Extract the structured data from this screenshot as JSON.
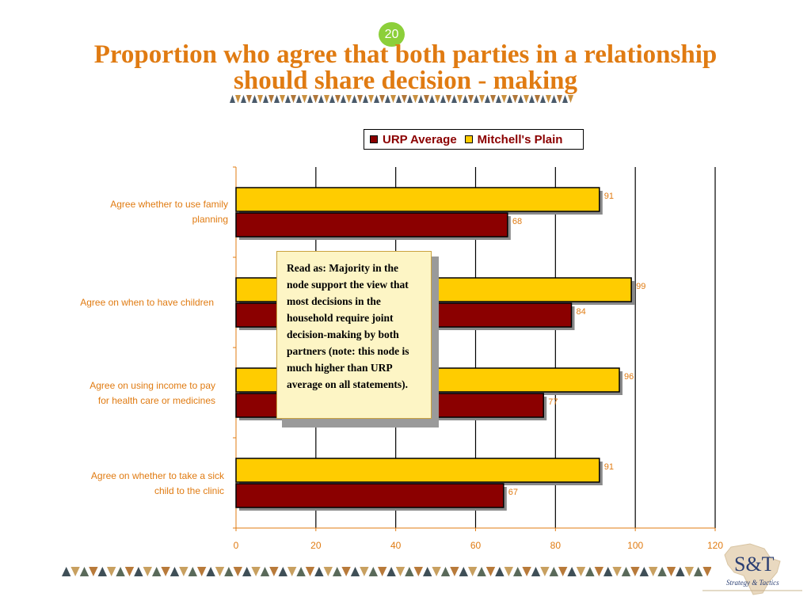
{
  "slide": {
    "number": "20"
  },
  "title": "Proportion who agree that both parties in a relationship should share decision - making",
  "chart_data": {
    "type": "bar",
    "orientation": "horizontal",
    "categories": [
      "Agree whether to use family\nplanning",
      "Agree on when to have children",
      "Agree on using income to pay\nfor health care or medicines",
      "Agree on whether to take a sick\nchild to the clinic"
    ],
    "series": [
      {
        "name": "URP Average",
        "color": "#8b0000",
        "values": [
          68,
          84,
          77,
          67
        ]
      },
      {
        "name": "Mitchell's Plain",
        "color": "#ffcc00",
        "values": [
          91,
          99,
          96,
          91
        ]
      }
    ],
    "xlim": [
      0,
      120
    ],
    "xticks": [
      "0",
      "20",
      "40",
      "60",
      "80",
      "100",
      "120"
    ],
    "grid": true,
    "legend_position": "top"
  },
  "note": "Read as: Majority in the node support the view that most decisions in the household require joint decision-making by both partners (note: this node is much higher than URP average on all statements).",
  "logo": {
    "main": "S&T",
    "tagline": "Strategy & Tactics"
  }
}
